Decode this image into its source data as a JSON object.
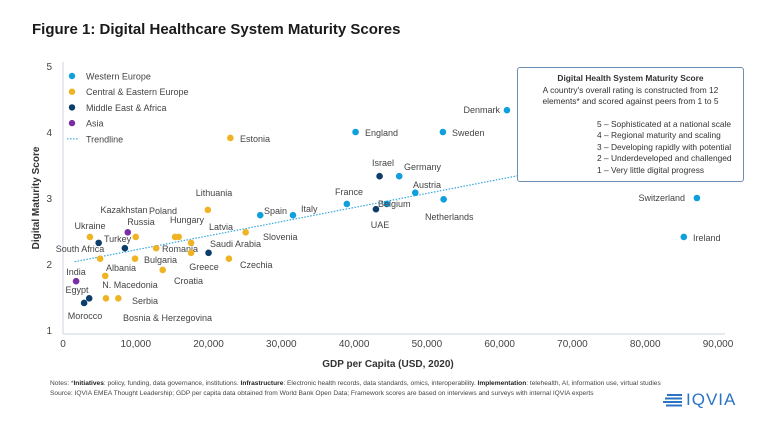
{
  "title": "Figure 1: Digital Healthcare System Maturity Scores",
  "chart_data": {
    "type": "scatter",
    "title": "Figure 1: Digital Healthcare System Maturity Scores",
    "xlabel": "GDP per Capita (USD, 2020)",
    "ylabel": "Digital Maturity Score",
    "xlim": [
      0,
      90000
    ],
    "ylim": [
      1,
      5
    ],
    "xticks": [
      "0",
      "10,000",
      "20,000",
      "30,000",
      "40,000",
      "50,000",
      "60,000",
      "70,000",
      "80,000",
      "90,000"
    ],
    "yticks": [
      "1",
      "2",
      "3",
      "4",
      "5"
    ],
    "legend_position": "top-left",
    "legend": [
      "Western Europe",
      "Central & Eastern Europe",
      "Middle East & Africa",
      "Asia",
      "Trendline"
    ],
    "colors": {
      "Western Europe": "#0e9fdc",
      "Central & Eastern Europe": "#f0b323",
      "Middle East & Africa": "#0c3d6b",
      "Asia": "#7a2ea5",
      "Trendline": "#35a8e0"
    },
    "trendline": {
      "intercept": 2.0,
      "slope_per_1000": 0.0214
    },
    "series": [
      {
        "name": "Western Europe",
        "points": [
          {
            "label": "Denmark",
            "x": 61000,
            "y": 4.33
          },
          {
            "label": "England",
            "x": 40200,
            "y": 4.0
          },
          {
            "label": "Sweden",
            "x": 52200,
            "y": 4.0
          },
          {
            "label": "Germany",
            "x": 46200,
            "y": 3.33
          },
          {
            "label": "Austria",
            "x": 48400,
            "y": 3.08
          },
          {
            "label": "Netherlands",
            "x": 52300,
            "y": 2.98
          },
          {
            "label": "Belgium",
            "x": 44500,
            "y": 2.91
          },
          {
            "label": "France",
            "x": 39000,
            "y": 2.91
          },
          {
            "label": "Spain",
            "x": 27100,
            "y": 2.74
          },
          {
            "label": "Italy",
            "x": 31600,
            "y": 2.74
          },
          {
            "label": "Switzerland",
            "x": 87100,
            "y": 3.0
          },
          {
            "label": "Ireland",
            "x": 85300,
            "y": 2.41
          }
        ]
      },
      {
        "name": "Central & Eastern Europe",
        "points": [
          {
            "label": "Estonia",
            "x": 23000,
            "y": 3.91
          },
          {
            "label": "Lithuania",
            "x": 19900,
            "y": 2.82
          },
          {
            "label": "Slovenia",
            "x": 25100,
            "y": 2.48
          },
          {
            "label": "Poland",
            "x": 15400,
            "y": 2.41
          },
          {
            "label": "Hungary",
            "x": 15900,
            "y": 2.41
          },
          {
            "label": "Latvia",
            "x": 17600,
            "y": 2.32
          },
          {
            "label": "Russia",
            "x": 10000,
            "y": 2.41
          },
          {
            "label": "Ukraine",
            "x": 3700,
            "y": 2.41
          },
          {
            "label": "Romania",
            "x": 12800,
            "y": 2.24
          },
          {
            "label": "Greece",
            "x": 17600,
            "y": 2.17
          },
          {
            "label": "Czechia",
            "x": 22800,
            "y": 2.08
          },
          {
            "label": "Bulgaria",
            "x": 9900,
            "y": 2.08
          },
          {
            "label": "Albania",
            "x": 5100,
            "y": 2.08
          },
          {
            "label": "Croatia",
            "x": 13700,
            "y": 1.91
          },
          {
            "label": "N. Macedonia",
            "x": 5800,
            "y": 1.82
          },
          {
            "label": "Serbia",
            "x": 7600,
            "y": 1.48
          },
          {
            "label": "Bosnia & Herzegovina",
            "x": 5900,
            "y": 1.48
          }
        ]
      },
      {
        "name": "Middle East & Africa",
        "points": [
          {
            "label": "Israel",
            "x": 43500,
            "y": 3.33
          },
          {
            "label": "UAE",
            "x": 43000,
            "y": 2.83
          },
          {
            "label": "Saudi Arabia",
            "x": 20000,
            "y": 2.17
          },
          {
            "label": "South Africa",
            "x": 4900,
            "y": 2.32
          },
          {
            "label": "Turkey",
            "x": 8500,
            "y": 2.24
          },
          {
            "label": "Egypt",
            "x": 3600,
            "y": 1.48
          },
          {
            "label": "Morocco",
            "x": 2900,
            "y": 1.41
          }
        ]
      },
      {
        "name": "Asia",
        "points": [
          {
            "label": "Kazakhstan",
            "x": 8900,
            "y": 2.48
          },
          {
            "label": "India",
            "x": 1800,
            "y": 1.74
          }
        ]
      }
    ]
  },
  "infobox": {
    "title": "Digital Health System Maturity Score",
    "line1": "A country's overall rating is constructed from 12",
    "line2": "elements* and scored against peers from 1 to 5",
    "scale": [
      "5 – Sophisticated at a national scale",
      "4 – Regional maturity and scaling",
      "3 – Developing rapidly with potential",
      "2 – Underdeveloped and challenged",
      "1 – Very little digital progress"
    ]
  },
  "notes": {
    "prefix": "Notes: *",
    "k1": "Initiatives",
    "v1": ": policy, funding, data governance, institutions. ",
    "k2": "Infrastructure",
    "v2": ": Electronic health records, data standards, omics, interoperability. ",
    "k3": "Implementation",
    "v3": ": telehealth, AI, information use, virtual studies",
    "source": "Source: IQVIA EMEA Thought Leadership; GDP per capita data obtained from World Bank Open Data; Framework scores are based on interviews and surveys with internal IQVIA experts"
  },
  "logo": "IQVIA"
}
